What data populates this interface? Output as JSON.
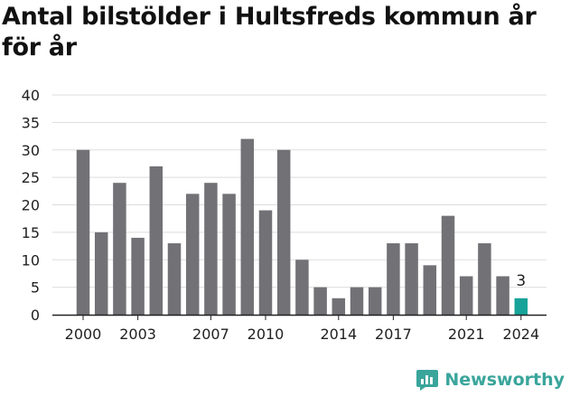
{
  "title": "Antal bilstölder i Hultsfreds kommun år för år",
  "brand": {
    "name": "Newsworthy",
    "icon": "bar-chart-bubble-icon",
    "color": "#3aa59b"
  },
  "colors": {
    "bar": "#727176",
    "highlight": "#18a39a",
    "grid": "#dddddd",
    "axis": "#222222",
    "text": "#222222"
  },
  "chart_data": {
    "type": "bar",
    "title": "Antal bilstölder i Hultsfreds kommun år för år",
    "xlabel": "",
    "ylabel": "",
    "categories": [
      "2000",
      "2001",
      "2002",
      "2003",
      "2004",
      "2005",
      "2006",
      "2007",
      "2008",
      "2009",
      "2010",
      "2011",
      "2012",
      "2013",
      "2014",
      "2015",
      "2016",
      "2017",
      "2018",
      "2019",
      "2020",
      "2021",
      "2022",
      "2023",
      "2024"
    ],
    "values": [
      30,
      15,
      24,
      14,
      27,
      13,
      22,
      24,
      22,
      32,
      19,
      30,
      10,
      5,
      3,
      5,
      5,
      13,
      13,
      9,
      18,
      7,
      13,
      7,
      3
    ],
    "ylim": [
      0,
      40
    ],
    "yticks": [
      0,
      5,
      10,
      15,
      20,
      25,
      30,
      35,
      40
    ],
    "xtick_labels": [
      "2000",
      "2003",
      "2007",
      "2010",
      "2014",
      "2017",
      "2021",
      "2024"
    ],
    "highlight_category": "2024",
    "annotations": [
      {
        "category": "2024",
        "text": "3"
      }
    ],
    "grid": true,
    "legend": "none"
  }
}
